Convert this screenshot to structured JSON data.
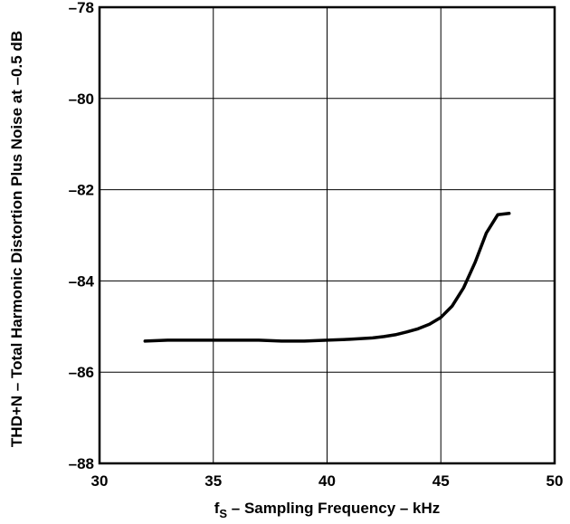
{
  "chart_data": {
    "type": "line",
    "xlabel_prefix": "f",
    "xlabel_subscript": "S",
    "xlabel_rest": " – Sampling Frequency – kHz",
    "ylabel": "THD+N – Total Harmonic Distortion Plus Noise at –0.5 dB",
    "xlim": [
      30,
      50
    ],
    "ylim": [
      -88,
      -78
    ],
    "xticks": [
      30,
      35,
      40,
      45,
      50
    ],
    "yticks": [
      -78,
      -80,
      -82,
      -84,
      -86,
      -88
    ],
    "xtick_labels": [
      "30",
      "35",
      "40",
      "45",
      "50"
    ],
    "ytick_labels": [
      "–78",
      "–80",
      "–82",
      "–84",
      "–86",
      "–88"
    ],
    "grid": true,
    "series": [
      {
        "x": [
          32,
          33,
          34,
          35,
          36,
          37,
          38,
          39,
          40,
          41,
          42,
          42.5,
          43,
          43.5,
          44,
          44.5,
          45,
          45.5,
          46,
          46.5,
          47,
          47.5,
          48
        ],
        "y": [
          -85.32,
          -85.3,
          -85.3,
          -85.3,
          -85.3,
          -85.3,
          -85.32,
          -85.32,
          -85.3,
          -85.28,
          -85.25,
          -85.22,
          -85.18,
          -85.12,
          -85.05,
          -84.95,
          -84.8,
          -84.55,
          -84.15,
          -83.6,
          -82.95,
          -82.55,
          -82.52
        ]
      }
    ]
  }
}
